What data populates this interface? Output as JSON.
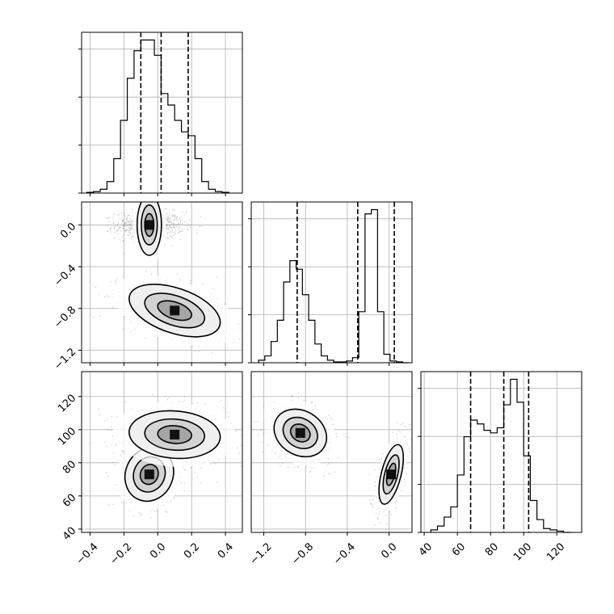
{
  "chart_data": {
    "type": "corner",
    "colors": {
      "ink": "#000000",
      "grid": "#b0b0b0",
      "background": "#ffffff",
      "scatter": "#555555"
    },
    "grid": true,
    "params": [
      {
        "range": [
          -0.45,
          0.5
        ],
        "ticks": [
          -0.4,
          -0.2,
          0.0,
          0.2,
          0.4
        ],
        "tick_labels": [
          "−0.4",
          "−0.2",
          "0.0",
          "0.2",
          "0.4"
        ],
        "quantiles": [
          -0.1,
          0.02,
          0.18
        ],
        "hist": {
          "edges": [
            -0.42,
            -0.38,
            -0.34,
            -0.3,
            -0.26,
            -0.22,
            -0.18,
            -0.14,
            -0.1,
            -0.06,
            -0.02,
            0.02,
            0.06,
            0.1,
            0.14,
            0.18,
            0.22,
            0.26,
            0.3,
            0.34,
            0.38,
            0.42
          ],
          "counts": [
            1,
            2,
            5,
            15,
            45,
            95,
            150,
            186,
            200,
            200,
            180,
            130,
            115,
            95,
            80,
            75,
            45,
            15,
            5,
            2,
            1
          ]
        }
      },
      {
        "range": [
          -1.32,
          0.22
        ],
        "ticks": [
          -1.2,
          -0.8,
          -0.4,
          0.0
        ],
        "tick_labels": [
          "−1.2",
          "−0.8",
          "−0.4",
          "0.0"
        ],
        "quantiles": [
          -0.88,
          -0.3,
          0.05
        ],
        "hist": {
          "edges": [
            -1.25,
            -1.19,
            -1.13,
            -1.07,
            -1.01,
            -0.95,
            -0.89,
            -0.83,
            -0.77,
            -0.71,
            -0.65,
            -0.59,
            -0.53,
            -0.47,
            -0.41,
            -0.35,
            -0.29,
            -0.23,
            -0.17,
            -0.11,
            -0.05,
            0.01,
            0.07,
            0.13,
            0.19
          ],
          "counts": [
            3,
            8,
            25,
            50,
            95,
            120,
            110,
            80,
            50,
            22,
            8,
            3,
            1,
            1,
            2,
            6,
            60,
            175,
            180,
            60,
            10,
            2,
            1,
            0
          ]
        }
      },
      {
        "range": [
          38,
          135
        ],
        "ticks": [
          40,
          60,
          80,
          100,
          120
        ],
        "tick_labels": [
          "40",
          "60",
          "80",
          "100",
          "120"
        ],
        "quantiles": [
          68,
          88,
          103
        ],
        "hist": {
          "edges": [
            44,
            48,
            52,
            56,
            60,
            64,
            68,
            72,
            76,
            80,
            84,
            88,
            92,
            96,
            100,
            104,
            108,
            112,
            116,
            120,
            124,
            128
          ],
          "counts": [
            2,
            5,
            12,
            20,
            45,
            75,
            88,
            85,
            80,
            78,
            82,
            100,
            120,
            102,
            60,
            25,
            10,
            3,
            2,
            1,
            0
          ]
        }
      }
    ],
    "pairs": [
      {
        "x": 0,
        "y": 1,
        "clusters": [
          {
            "mean": [
              -0.05,
              0.0
            ],
            "sd": [
              0.1,
              0.065
            ],
            "rho": 0.0,
            "weight": 0.45
          },
          {
            "mean": [
              0.1,
              -0.82
            ],
            "sd": [
              0.15,
              0.14
            ],
            "rho": -0.45,
            "weight": 0.55
          }
        ]
      },
      {
        "x": 0,
        "y": 2,
        "clusters": [
          {
            "mean": [
              -0.05,
              73
            ],
            "sd": [
              0.08,
              9
            ],
            "rho": 0.1,
            "weight": 0.45
          },
          {
            "mean": [
              0.1,
              97
            ],
            "sd": [
              0.15,
              8
            ],
            "rho": -0.1,
            "weight": 0.55
          }
        ]
      },
      {
        "x": 1,
        "y": 2,
        "clusters": [
          {
            "mean": [
              -0.85,
              98
            ],
            "sd": [
              0.14,
              8
            ],
            "rho": -0.2,
            "weight": 0.55
          },
          {
            "mean": [
              0.02,
              73
            ],
            "sd": [
              0.065,
              10
            ],
            "rho": 0.55,
            "weight": 0.45
          }
        ]
      }
    ]
  }
}
